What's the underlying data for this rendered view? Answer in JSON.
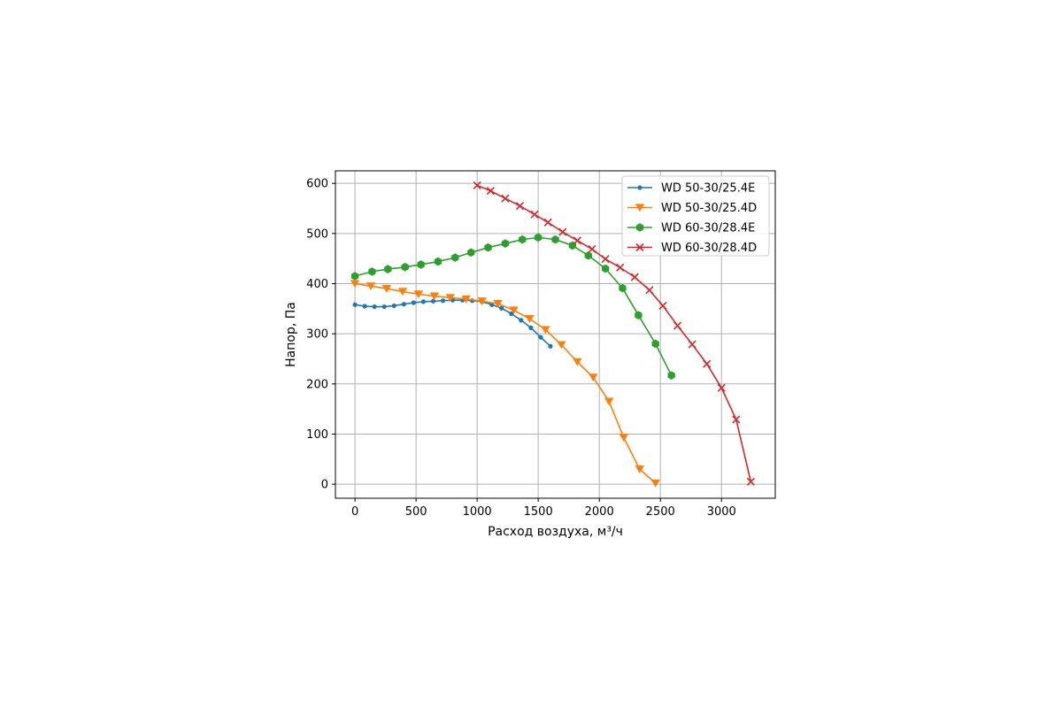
{
  "chart_data": {
    "type": "line",
    "xlabel": "Расход воздуха, м³/ч",
    "ylabel": "Напор, Па",
    "xlim": [
      -160,
      3440
    ],
    "ylim": [
      -28,
      625
    ],
    "xticks": [
      0,
      500,
      1000,
      1500,
      2000,
      2500,
      3000
    ],
    "yticks": [
      0,
      100,
      200,
      300,
      400,
      500,
      600
    ],
    "grid": true,
    "legend_position": "top-right",
    "series": [
      {
        "name": "WD 50-30/25.4E",
        "color": "#1f77b4",
        "marker": "point",
        "x": [
          0,
          80,
          160,
          240,
          320,
          400,
          480,
          560,
          640,
          720,
          800,
          880,
          960,
          1040,
          1120,
          1200,
          1280,
          1360,
          1440,
          1520,
          1600
        ],
        "y": [
          358,
          355,
          354,
          354,
          356,
          359,
          362,
          364,
          365,
          366,
          367,
          367,
          366,
          364,
          358,
          351,
          340,
          327,
          312,
          293,
          275
        ]
      },
      {
        "name": "WD 50-30/25.4D",
        "color": "#ff7f0e",
        "marker": "triangle-down",
        "x": [
          0,
          130,
          260,
          390,
          520,
          650,
          780,
          910,
          1040,
          1170,
          1300,
          1430,
          1560,
          1690,
          1820,
          1950,
          2080,
          2200,
          2330,
          2460
        ],
        "y": [
          400,
          395,
          390,
          384,
          379,
          375,
          372,
          369,
          365,
          360,
          347,
          330,
          308,
          278,
          244,
          213,
          165,
          93,
          30,
          2
        ]
      },
      {
        "name": "WD 60-30/28.4E",
        "color": "#2ca02c",
        "marker": "hexagon",
        "x": [
          0,
          140,
          270,
          410,
          540,
          680,
          820,
          950,
          1090,
          1230,
          1370,
          1500,
          1640,
          1780,
          1910,
          2050,
          2190,
          2320,
          2460,
          2590
        ],
        "y": [
          415,
          424,
          429,
          433,
          438,
          444,
          452,
          462,
          472,
          480,
          488,
          492,
          488,
          476,
          456,
          430,
          391,
          337,
          280,
          217
        ]
      },
      {
        "name": "WD 60-30/28.4D",
        "color": "#d62728",
        "marker": "x",
        "x": [
          1000,
          1110,
          1230,
          1350,
          1470,
          1580,
          1700,
          1820,
          1940,
          2050,
          2170,
          2290,
          2410,
          2520,
          2640,
          2760,
          2880,
          3000,
          3120,
          3240
        ],
        "y": [
          596,
          585,
          570,
          555,
          538,
          522,
          503,
          486,
          469,
          449,
          432,
          413,
          387,
          356,
          316,
          279,
          240,
          192,
          129,
          5
        ]
      }
    ]
  }
}
